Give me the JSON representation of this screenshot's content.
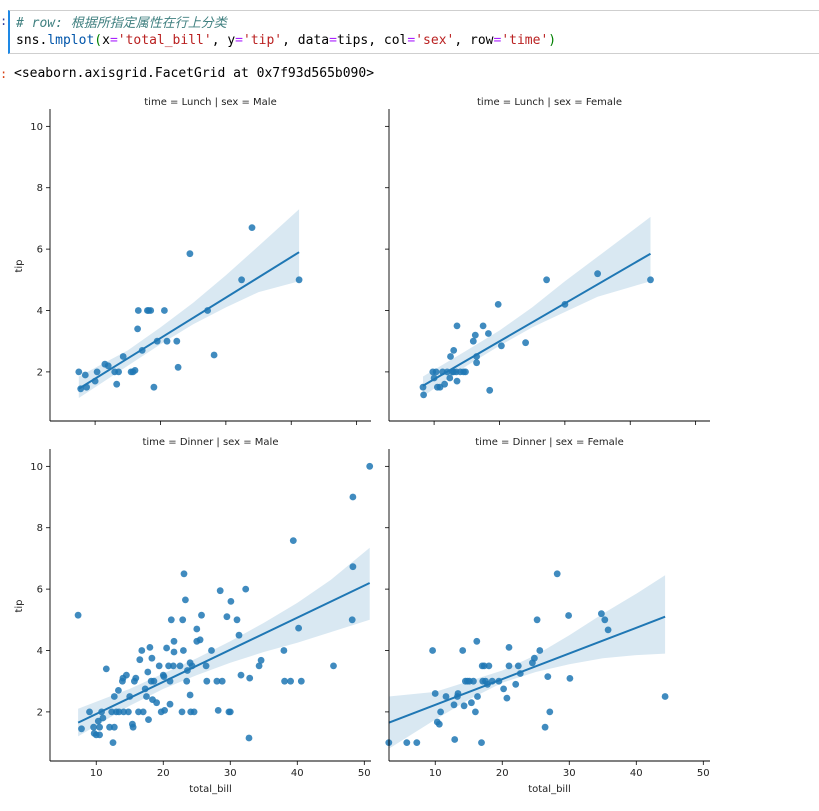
{
  "code_cell": {
    "comment": "# row: 根据所指定属性在行上分类",
    "line2": {
      "obj": "sns",
      "fn": "lmplot",
      "x_kw": "x",
      "x_val": "'total_bill'",
      "y_kw": "y",
      "y_val": "'tip'",
      "data_kw": "data",
      "data_val": "tips",
      "col_kw": "col",
      "col_val": "'sex'",
      "row_kw": "row",
      "row_val": "'time'"
    }
  },
  "output_text": "<seaborn.axisgrid.FacetGrid at 0x7f93d565b090>",
  "colors": {
    "point": "#1f77b4",
    "line": "#1f77b4",
    "ci": "#1f77b4"
  },
  "chart_data": [
    {
      "type": "scatter",
      "title": "time = Lunch | sex = Male",
      "ylabel": "tip",
      "xlabel": "",
      "xlim": [
        3.1,
        52.2
      ],
      "ylim": [
        0.4,
        10.5
      ],
      "xticks": [
        10,
        20,
        30,
        40,
        50
      ],
      "yticks": [
        2,
        4,
        6,
        8,
        10
      ],
      "points": [
        [
          7.5,
          2.0
        ],
        [
          7.8,
          1.45
        ],
        [
          8.5,
          1.9
        ],
        [
          8.7,
          1.5
        ],
        [
          10.0,
          1.7
        ],
        [
          10.3,
          2.0
        ],
        [
          11.5,
          2.25
        ],
        [
          12.0,
          2.2
        ],
        [
          13.0,
          2.0
        ],
        [
          13.3,
          1.6
        ],
        [
          13.6,
          2.0
        ],
        [
          14.3,
          2.5
        ],
        [
          15.5,
          2.0
        ],
        [
          15.8,
          2.0
        ],
        [
          16.1,
          2.05
        ],
        [
          16.5,
          3.4
        ],
        [
          16.6,
          4.0
        ],
        [
          17.2,
          2.7
        ],
        [
          18.0,
          4.0
        ],
        [
          18.2,
          4.0
        ],
        [
          18.5,
          4.0
        ],
        [
          19.0,
          1.5
        ],
        [
          19.5,
          3.0
        ],
        [
          20.6,
          4.0
        ],
        [
          21.0,
          3.0
        ],
        [
          22.5,
          3.0
        ],
        [
          22.7,
          2.15
        ],
        [
          24.5,
          5.85
        ],
        [
          27.2,
          4.0
        ],
        [
          28.2,
          2.55
        ],
        [
          32.4,
          5.0
        ],
        [
          34.0,
          6.7
        ],
        [
          41.2,
          5.0
        ]
      ],
      "reg": {
        "x": [
          7.5,
          41.2
        ],
        "y": [
          1.45,
          5.9
        ]
      },
      "ci": {
        "x": [
          7.5,
          15,
          20,
          25,
          30,
          35,
          41.2
        ],
        "upper": [
          1.85,
          2.7,
          3.45,
          4.25,
          5.15,
          6.1,
          7.3
        ],
        "lower": [
          1.15,
          2.2,
          2.9,
          3.55,
          4.1,
          4.6,
          4.95
        ]
      }
    },
    {
      "type": "scatter",
      "title": "time = Lunch | sex = Female",
      "ylabel": "",
      "xlabel": "",
      "xlim": [
        3.1,
        52.2
      ],
      "ylim": [
        0.4,
        10.5
      ],
      "xticks": [
        10,
        20,
        30,
        40,
        50
      ],
      "yticks": [
        2,
        4,
        6,
        8,
        10
      ],
      "points": [
        [
          8.3,
          1.5
        ],
        [
          8.4,
          1.25
        ],
        [
          9.8,
          2.0
        ],
        [
          10.0,
          1.8
        ],
        [
          10.3,
          2.0
        ],
        [
          10.5,
          1.5
        ],
        [
          10.9,
          1.5
        ],
        [
          11.3,
          2.0
        ],
        [
          11.6,
          1.6
        ],
        [
          12.0,
          2.0
        ],
        [
          12.4,
          1.8
        ],
        [
          12.5,
          2.5
        ],
        [
          12.8,
          2.0
        ],
        [
          13.0,
          2.0
        ],
        [
          13.0,
          2.7
        ],
        [
          13.4,
          2.0
        ],
        [
          13.5,
          1.7
        ],
        [
          13.5,
          3.5
        ],
        [
          14.0,
          2.0
        ],
        [
          14.5,
          2.0
        ],
        [
          14.8,
          2.0
        ],
        [
          16.0,
          3.0
        ],
        [
          16.3,
          3.2
        ],
        [
          16.5,
          2.5
        ],
        [
          16.5,
          2.3
        ],
        [
          17.5,
          3.5
        ],
        [
          18.3,
          3.25
        ],
        [
          18.5,
          1.4
        ],
        [
          19.8,
          4.2
        ],
        [
          20.3,
          2.85
        ],
        [
          24.0,
          2.95
        ],
        [
          27.2,
          5.0
        ],
        [
          30.0,
          4.2
        ],
        [
          35.0,
          5.2
        ],
        [
          43.1,
          5.0
        ]
      ],
      "reg": {
        "x": [
          8.3,
          43.1
        ],
        "y": [
          1.55,
          5.85
        ]
      },
      "ci": {
        "x": [
          8.3,
          15,
          20,
          25,
          30,
          35,
          43.1
        ],
        "upper": [
          1.85,
          2.7,
          3.35,
          4.1,
          4.95,
          5.75,
          7.05
        ],
        "lower": [
          1.2,
          2.2,
          2.85,
          3.45,
          3.95,
          4.45,
          4.95
        ]
      }
    },
    {
      "type": "scatter",
      "title": "time = Dinner | sex = Male",
      "ylabel": "tip",
      "xlabel": "total_bill",
      "xlim": [
        3.1,
        51.0
      ],
      "ylim": [
        0.4,
        10.5
      ],
      "xticks": [
        10,
        20,
        30,
        40,
        50
      ],
      "yticks": [
        2,
        4,
        6,
        8,
        10
      ],
      "points": [
        [
          7.3,
          5.15
        ],
        [
          7.8,
          1.45
        ],
        [
          9.0,
          2.0
        ],
        [
          9.6,
          1.5
        ],
        [
          9.7,
          1.3
        ],
        [
          10.0,
          1.25
        ],
        [
          10.3,
          1.7
        ],
        [
          10.5,
          1.25
        ],
        [
          10.5,
          1.5
        ],
        [
          10.8,
          2.0
        ],
        [
          11.0,
          1.8
        ],
        [
          11.5,
          3.4
        ],
        [
          12.0,
          1.5
        ],
        [
          12.3,
          2.0
        ],
        [
          12.5,
          1.0
        ],
        [
          12.7,
          1.5
        ],
        [
          12.7,
          2.5
        ],
        [
          13.0,
          2.0
        ],
        [
          13.3,
          2.7
        ],
        [
          13.4,
          2.0
        ],
        [
          13.9,
          3.0
        ],
        [
          14.0,
          3.1
        ],
        [
          14.1,
          2.0
        ],
        [
          14.5,
          3.2
        ],
        [
          14.8,
          2.0
        ],
        [
          15.0,
          2.5
        ],
        [
          15.4,
          1.6
        ],
        [
          15.5,
          1.5
        ],
        [
          15.7,
          3.0
        ],
        [
          15.9,
          3.1
        ],
        [
          16.3,
          2.0
        ],
        [
          16.5,
          3.7
        ],
        [
          16.8,
          4.0
        ],
        [
          17.0,
          2.0
        ],
        [
          17.3,
          2.75
        ],
        [
          17.5,
          2.5
        ],
        [
          17.7,
          3.3
        ],
        [
          17.8,
          1.75
        ],
        [
          18.0,
          4.1
        ],
        [
          18.2,
          3.0
        ],
        [
          18.3,
          3.75
        ],
        [
          18.4,
          2.4
        ],
        [
          18.6,
          3.0
        ],
        [
          19.0,
          2.3
        ],
        [
          19.4,
          3.5
        ],
        [
          19.7,
          2.0
        ],
        [
          20.0,
          3.2
        ],
        [
          20.1,
          3.15
        ],
        [
          20.2,
          2.05
        ],
        [
          20.5,
          4.08
        ],
        [
          20.8,
          3.5
        ],
        [
          21.0,
          2.25
        ],
        [
          21.0,
          3.0
        ],
        [
          21.2,
          5.0
        ],
        [
          21.5,
          3.5
        ],
        [
          21.6,
          3.95
        ],
        [
          21.6,
          4.3
        ],
        [
          22.5,
          3.5
        ],
        [
          22.8,
          2.0
        ],
        [
          22.9,
          5.0
        ],
        [
          23.0,
          4.0
        ],
        [
          23.1,
          6.5
        ],
        [
          23.3,
          5.65
        ],
        [
          23.5,
          3.0
        ],
        [
          23.6,
          3.35
        ],
        [
          24.0,
          3.6
        ],
        [
          24.0,
          2.55
        ],
        [
          24.1,
          2.0
        ],
        [
          24.3,
          3.5
        ],
        [
          24.6,
          2.0
        ],
        [
          25.0,
          4.3
        ],
        [
          25.0,
          4.7
        ],
        [
          25.5,
          4.35
        ],
        [
          25.7,
          5.15
        ],
        [
          26.4,
          3.5
        ],
        [
          26.5,
          3.0
        ],
        [
          27.2,
          4.0
        ],
        [
          28.0,
          3.0
        ],
        [
          28.2,
          2.05
        ],
        [
          28.5,
          5.95
        ],
        [
          28.8,
          3.0
        ],
        [
          29.5,
          5.1
        ],
        [
          29.8,
          2.0
        ],
        [
          30.0,
          2.0
        ],
        [
          30.1,
          5.6
        ],
        [
          31.0,
          5.0
        ],
        [
          31.3,
          4.5
        ],
        [
          31.6,
          3.2
        ],
        [
          32.3,
          6.0
        ],
        [
          32.8,
          1.15
        ],
        [
          32.9,
          3.1
        ],
        [
          34.3,
          3.5
        ],
        [
          34.6,
          3.68
        ],
        [
          38.0,
          4.0
        ],
        [
          38.1,
          3.0
        ],
        [
          39.0,
          3.0
        ],
        [
          39.4,
          7.58
        ],
        [
          40.2,
          4.73
        ],
        [
          40.6,
          3.0
        ],
        [
          45.4,
          3.5
        ],
        [
          48.2,
          5.0
        ],
        [
          48.3,
          6.73
        ],
        [
          48.3,
          9.0
        ],
        [
          50.8,
          10.0
        ]
      ],
      "reg": {
        "x": [
          7.3,
          50.8
        ],
        "y": [
          1.65,
          6.2
        ]
      },
      "ci": {
        "x": [
          7.3,
          15,
          20,
          25,
          30,
          35,
          40,
          45,
          50.8
        ],
        "upper": [
          2.1,
          2.75,
          3.25,
          3.75,
          4.3,
          4.9,
          5.55,
          6.3,
          7.35
        ],
        "lower": [
          1.2,
          2.2,
          2.75,
          3.2,
          3.6,
          3.95,
          4.25,
          4.6,
          5.0
        ]
      }
    },
    {
      "type": "scatter",
      "title": "time = Dinner | sex = Female",
      "ylabel": "",
      "xlabel": "total_bill",
      "xlim": [
        3.1,
        51.0
      ],
      "ylim": [
        0.4,
        10.5
      ],
      "xticks": [
        10,
        20,
        30,
        40,
        50
      ],
      "yticks": [
        2,
        4,
        6,
        8,
        10
      ],
      "points": [
        [
          3.07,
          1.0
        ],
        [
          5.75,
          1.0
        ],
        [
          7.25,
          1.0
        ],
        [
          9.6,
          4.0
        ],
        [
          10.0,
          2.6
        ],
        [
          10.3,
          1.67
        ],
        [
          10.6,
          1.6
        ],
        [
          10.8,
          2.0
        ],
        [
          11.6,
          2.5
        ],
        [
          12.8,
          2.23
        ],
        [
          12.9,
          1.1
        ],
        [
          13.3,
          2.5
        ],
        [
          13.4,
          2.6
        ],
        [
          14.1,
          4.0
        ],
        [
          14.3,
          2.2
        ],
        [
          14.5,
          3.0
        ],
        [
          14.8,
          3.0
        ],
        [
          15.1,
          3.0
        ],
        [
          15.4,
          2.3
        ],
        [
          15.7,
          3.0
        ],
        [
          16.0,
          2.0
        ],
        [
          16.2,
          4.3
        ],
        [
          16.3,
          2.5
        ],
        [
          16.9,
          1.0
        ],
        [
          17.0,
          3.5
        ],
        [
          17.1,
          3.0
        ],
        [
          17.3,
          3.5
        ],
        [
          17.5,
          3.0
        ],
        [
          17.8,
          2.9
        ],
        [
          18.0,
          3.5
        ],
        [
          18.5,
          3.0
        ],
        [
          19.5,
          3.0
        ],
        [
          20.2,
          2.75
        ],
        [
          20.7,
          2.45
        ],
        [
          21.0,
          4.1
        ],
        [
          21.0,
          3.5
        ],
        [
          22.0,
          2.9
        ],
        [
          22.4,
          3.5
        ],
        [
          22.7,
          3.25
        ],
        [
          24.5,
          3.6
        ],
        [
          24.8,
          3.75
        ],
        [
          25.2,
          5.0
        ],
        [
          25.6,
          4.0
        ],
        [
          26.4,
          1.5
        ],
        [
          26.8,
          3.15
        ],
        [
          27.1,
          2.0
        ],
        [
          28.2,
          6.5
        ],
        [
          29.9,
          5.14
        ],
        [
          30.1,
          3.09
        ],
        [
          34.8,
          5.2
        ],
        [
          35.3,
          5.0
        ],
        [
          35.8,
          4.67
        ],
        [
          44.3,
          2.5
        ]
      ],
      "reg": {
        "x": [
          3.07,
          44.3
        ],
        "y": [
          1.65,
          5.1
        ]
      },
      "ci": {
        "x": [
          3.07,
          10,
          15,
          20,
          25,
          30,
          35,
          40,
          44.3
        ],
        "upper": [
          2.5,
          2.65,
          3.0,
          3.35,
          3.85,
          4.5,
          5.2,
          5.85,
          6.45
        ],
        "lower": [
          0.8,
          1.75,
          2.4,
          2.95,
          3.3,
          3.55,
          3.75,
          3.85,
          3.9
        ]
      }
    }
  ]
}
